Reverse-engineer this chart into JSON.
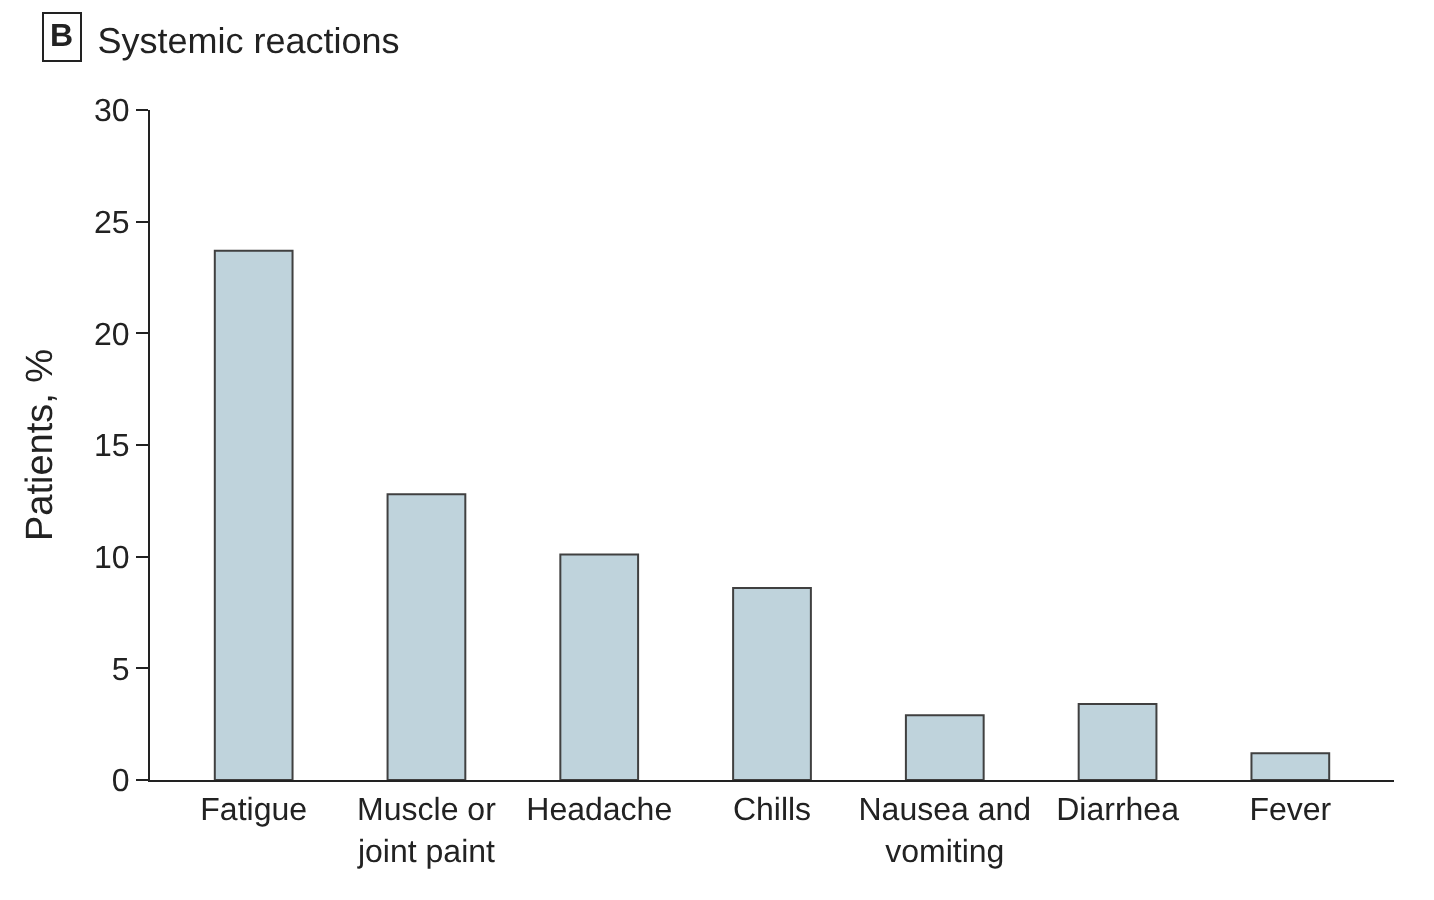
{
  "chart_data": {
    "type": "bar",
    "title": "Systemic reactions",
    "annotations": [
      "B"
    ],
    "ylabel": "Patients, %",
    "categories": [
      "Fatigue",
      "Muscle or joint paint",
      "Headache",
      "Chills",
      "Nausea and vomiting",
      "Diarrhea",
      "Fever"
    ],
    "values": [
      23.7,
      12.8,
      10.1,
      8.6,
      2.9,
      3.4,
      1.2
    ],
    "color": "#bfd3dc",
    "ylim": [
      0,
      30
    ],
    "yticks": [
      0,
      5,
      10,
      15,
      20,
      25,
      30
    ],
    "grid": false
  }
}
